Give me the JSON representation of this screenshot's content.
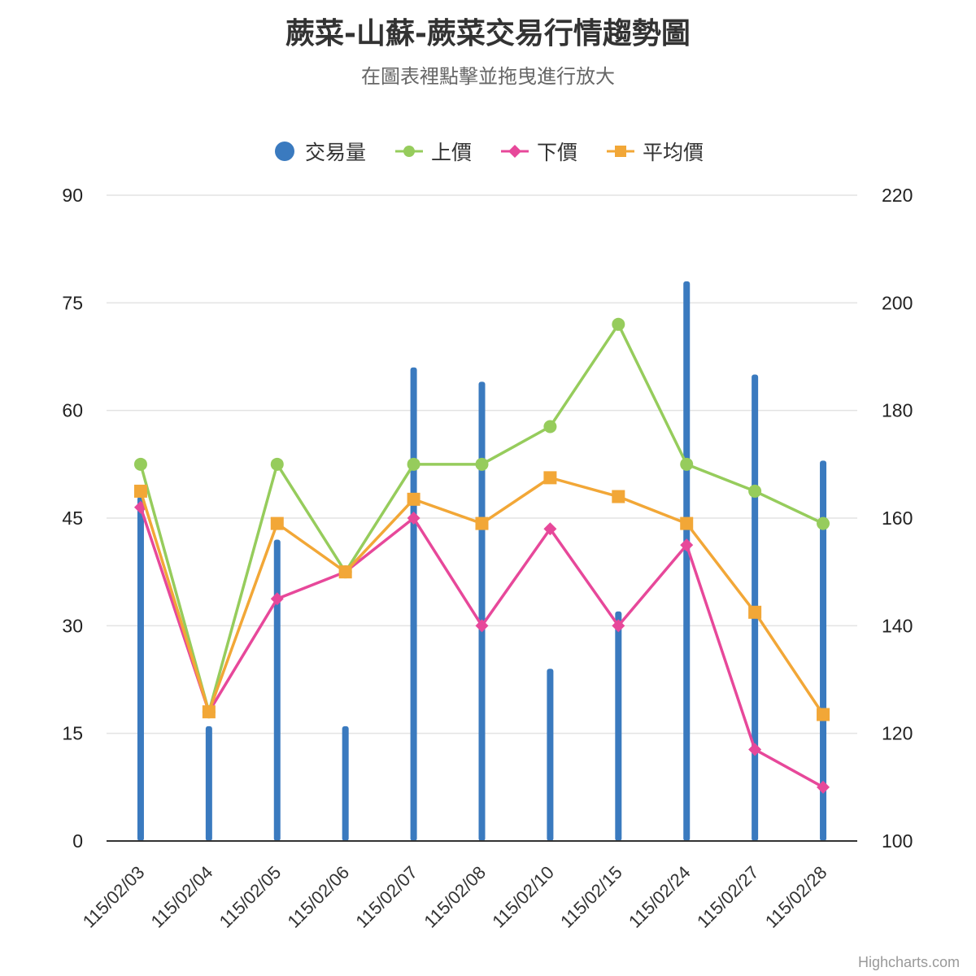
{
  "title": "蕨菜-山蘇-蕨菜交易行情趨勢圖",
  "subtitle": "在圖表裡點擊並拖曳進行放大",
  "credits": "Highcharts.com",
  "legend": [
    {
      "name": "交易量",
      "symbol": "circle",
      "color": "#3a7abf"
    },
    {
      "name": "上價",
      "symbol": "circle-line",
      "color": "#96cc5c"
    },
    {
      "name": "下價",
      "symbol": "diamond-line",
      "color": "#e7489a"
    },
    {
      "name": "平均價",
      "symbol": "square-line",
      "color": "#f2a737"
    }
  ],
  "chart_data": {
    "type": "bar",
    "categories": [
      "115/02/03",
      "115/02/04",
      "115/02/05",
      "115/02/06",
      "115/02/07",
      "115/02/08",
      "115/02/10",
      "115/02/15",
      "115/02/24",
      "115/02/27",
      "115/02/28"
    ],
    "left_axis": {
      "min": 0,
      "max": 90,
      "ticks": [
        "0",
        "15",
        "30",
        "45",
        "60",
        "75",
        "90"
      ]
    },
    "right_axis": {
      "min": 100,
      "max": 220,
      "ticks": [
        "100",
        "120",
        "140",
        "160",
        "180",
        "200",
        "220"
      ]
    },
    "series": [
      {
        "name": "交易量",
        "type": "column",
        "axis": "left",
        "color": "#3a7abf",
        "values": [
          48,
          16,
          42,
          16,
          66,
          64,
          24,
          32,
          78,
          65,
          53
        ]
      },
      {
        "name": "上價",
        "type": "line",
        "axis": "right",
        "marker": "circle",
        "color": "#96cc5c",
        "values": [
          170,
          124,
          170,
          150,
          170,
          170,
          177,
          196,
          170,
          165,
          159
        ]
      },
      {
        "name": "下價",
        "type": "line",
        "axis": "right",
        "marker": "diamond",
        "color": "#e7489a",
        "values": [
          162,
          124,
          145,
          150,
          160,
          140,
          158,
          140,
          155,
          117,
          110
        ]
      },
      {
        "name": "平均價",
        "type": "line",
        "axis": "right",
        "marker": "square",
        "color": "#f2a737",
        "values": [
          165,
          124,
          159,
          150,
          163.5,
          159,
          167.5,
          164,
          159,
          142.5,
          123.5
        ]
      }
    ]
  }
}
